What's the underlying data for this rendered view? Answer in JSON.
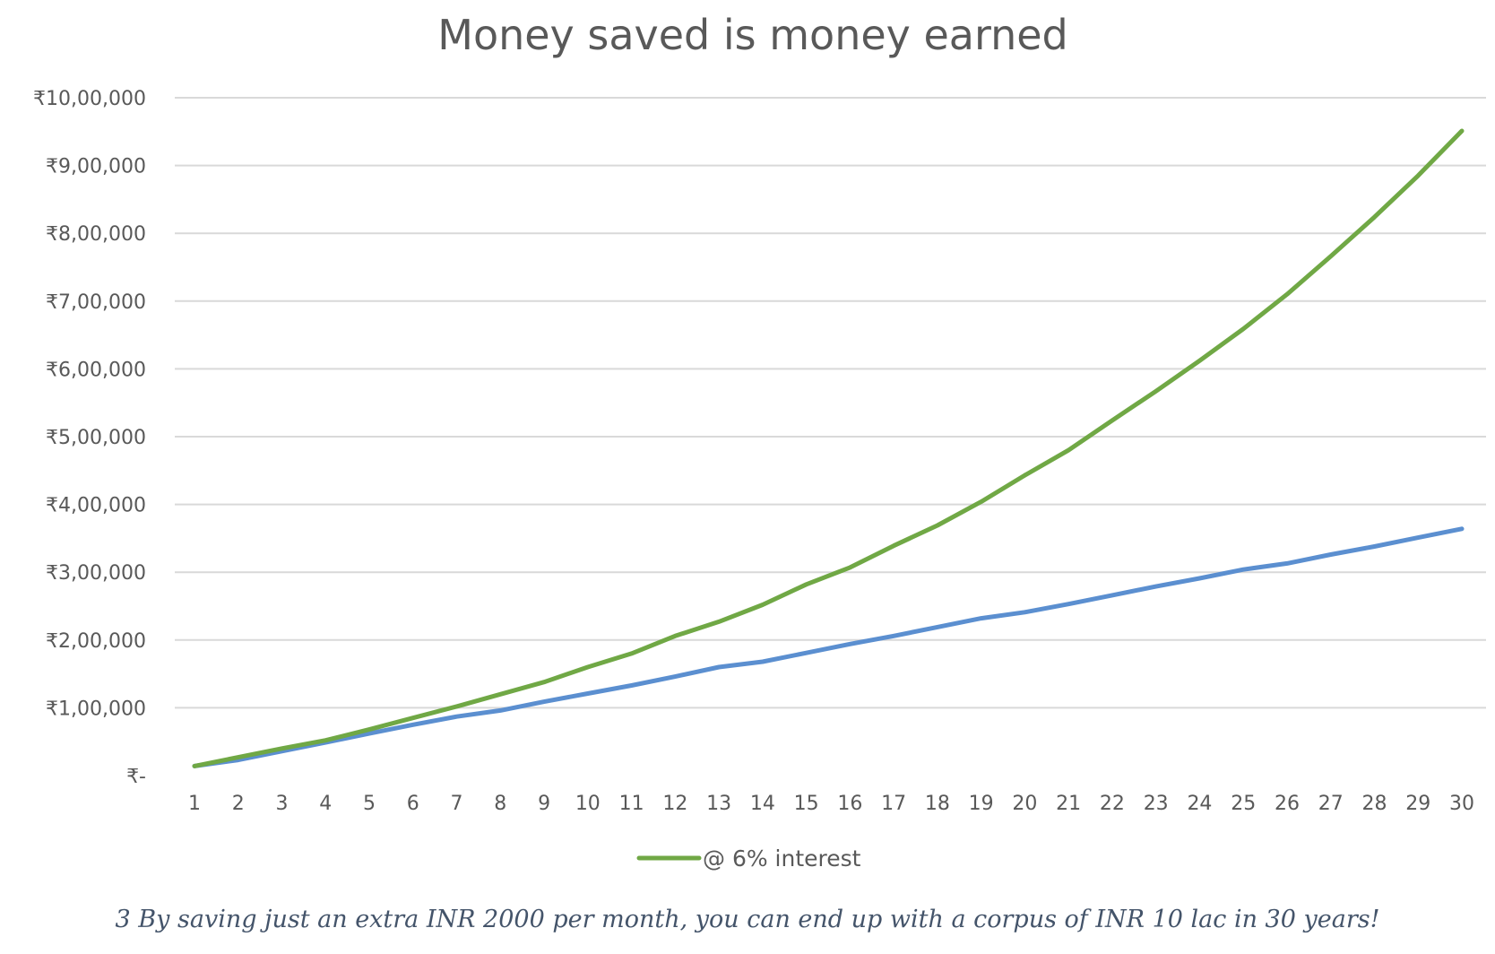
{
  "chart_data": {
    "type": "line",
    "title": "Money saved is money earned",
    "xlabel": "",
    "ylabel": "",
    "categories": [
      "1",
      "2",
      "3",
      "4",
      "5",
      "6",
      "7",
      "8",
      "9",
      "10",
      "11",
      "12",
      "13",
      "14",
      "15",
      "16",
      "17",
      "18",
      "19",
      "20",
      "21",
      "22",
      "23",
      "24",
      "25",
      "26",
      "27",
      "28",
      "29",
      "30"
    ],
    "y_tick_labels": [
      "₹-",
      "₹1,00,000",
      "₹2,00,000",
      "₹3,00,000",
      "₹4,00,000",
      "₹5,00,000",
      "₹6,00,000",
      "₹7,00,000",
      "₹8,00,000",
      "₹9,00,000",
      "₹10,00,000"
    ],
    "y_tick_values": [
      0,
      100000,
      200000,
      300000,
      400000,
      500000,
      600000,
      700000,
      800000,
      900000,
      1000000
    ],
    "ylim": [
      0,
      1000000
    ],
    "grid": true,
    "legend_position": "bottom",
    "series": [
      {
        "name": "@ 6% interest",
        "color": "#70a845",
        "in_legend": true,
        "values": [
          14000,
          27000,
          40000,
          52000,
          68000,
          85000,
          102000,
          120000,
          138000,
          160000,
          180000,
          206000,
          227000,
          252000,
          282000,
          307000,
          339000,
          369000,
          404000,
          443000,
          480000,
          524000,
          567000,
          612000,
          659000,
          710000,
          766000,
          824000,
          885000,
          951000
        ]
      },
      {
        "color": "#5b8fd0",
        "in_legend": false,
        "values": [
          14000,
          23000,
          36000,
          49000,
          62000,
          75000,
          87000,
          96000,
          109000,
          121000,
          133000,
          146000,
          160000,
          168000,
          181000,
          194000,
          206000,
          219000,
          232000,
          241000,
          253000,
          266000,
          279000,
          291000,
          304000,
          313000,
          326000,
          338000,
          351000,
          364000
        ]
      }
    ]
  },
  "caption": "3 By saving just an extra INR 2000 per month, you can end up with a corpus of INR 10 lac in 30 years!"
}
